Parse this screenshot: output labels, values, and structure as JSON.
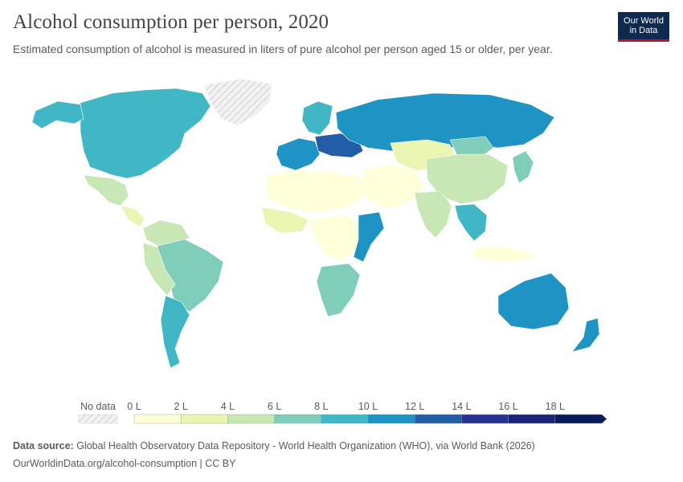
{
  "header": {
    "title": "Alcohol consumption per person, 2020",
    "subtitle": "Estimated consumption of alcohol is measured in liters of pure alcohol per person aged 15 or older, per year."
  },
  "logo": {
    "line1": "Our World",
    "line2": "in Data"
  },
  "legend": {
    "no_data_label": "No data",
    "bins": [
      {
        "label": "0 L",
        "color": "#ffffd9"
      },
      {
        "label": "2 L",
        "color": "#e9f5b1"
      },
      {
        "label": "4 L",
        "color": "#c7e8b4"
      },
      {
        "label": "6 L",
        "color": "#7fcdbb"
      },
      {
        "label": "8 L",
        "color": "#41b6c4"
      },
      {
        "label": "10 L",
        "color": "#1f93c3"
      },
      {
        "label": "12 L",
        "color": "#225ea8"
      },
      {
        "label": "14 L",
        "color": "#253494"
      },
      {
        "label": "16 L",
        "color": "#1a237a"
      },
      {
        "label": "18 L",
        "color": "#081d58"
      }
    ]
  },
  "regions": [
    {
      "name": "canada-usa",
      "color": "#41b6c4"
    },
    {
      "name": "alaska",
      "color": "#41b6c4"
    },
    {
      "name": "greenland",
      "color": "no-data"
    },
    {
      "name": "mexico",
      "color": "#c7e8b4"
    },
    {
      "name": "central-america",
      "color": "#e9f5b1"
    },
    {
      "name": "colombia-venezuela",
      "color": "#c7e8b4"
    },
    {
      "name": "brazil",
      "color": "#7fcdbb"
    },
    {
      "name": "peru-bolivia",
      "color": "#c7e8b4"
    },
    {
      "name": "argentina-chile",
      "color": "#41b6c4"
    },
    {
      "name": "western-europe",
      "color": "#1f93c3"
    },
    {
      "name": "eastern-europe",
      "color": "#225ea8"
    },
    {
      "name": "scandinavia",
      "color": "#41b6c4"
    },
    {
      "name": "russia",
      "color": "#1f93c3"
    },
    {
      "name": "north-africa",
      "color": "#ffffd9"
    },
    {
      "name": "west-africa",
      "color": "#e9f5b1"
    },
    {
      "name": "central-africa",
      "color": "#ffffd9"
    },
    {
      "name": "southern-africa",
      "color": "#7fcdbb"
    },
    {
      "name": "east-africa",
      "color": "#1f93c3"
    },
    {
      "name": "middle-east",
      "color": "#ffffd9"
    },
    {
      "name": "central-asia",
      "color": "#e9f5b1"
    },
    {
      "name": "mongolia",
      "color": "#7fcdbb"
    },
    {
      "name": "china",
      "color": "#c7e8b4"
    },
    {
      "name": "india",
      "color": "#c7e8b4"
    },
    {
      "name": "southeast-asia",
      "color": "#41b6c4"
    },
    {
      "name": "indonesia",
      "color": "#ffffd9"
    },
    {
      "name": "japan-korea",
      "color": "#7fcdbb"
    },
    {
      "name": "australia",
      "color": "#1f93c3"
    },
    {
      "name": "new-zealand",
      "color": "#1f93c3"
    }
  ],
  "footer": {
    "source_label": "Data source:",
    "source_text": "Global Health Observatory Data Repository - World Health Organization (WHO), via World Bank (2026)",
    "url": "OurWorldinData.org/alcohol-consumption | CC BY"
  }
}
